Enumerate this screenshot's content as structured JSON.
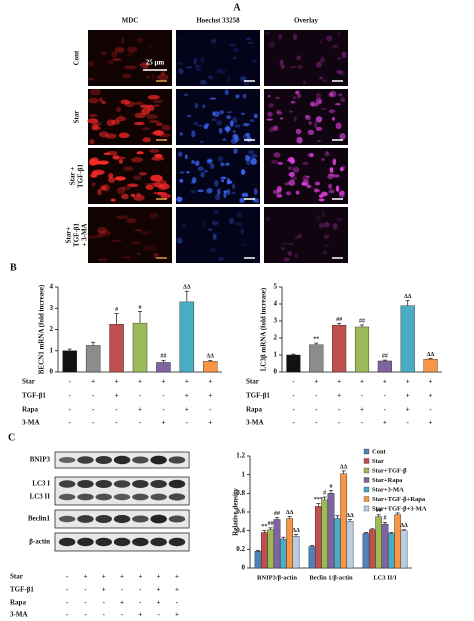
{
  "panel_a": {
    "label": "A",
    "columns": [
      "MDC",
      "Hoechst 33258",
      "Overlay"
    ],
    "rows": [
      [
        "Cont"
      ],
      [
        "Star"
      ],
      [
        "Star +",
        "TGF-β1"
      ],
      [
        "Star+",
        "TGF-β1",
        "+ 3-MA"
      ]
    ],
    "scale_bar": "25 μm"
  },
  "panel_b": {
    "label": "B"
  },
  "panel_c": {
    "label": "C",
    "blot_labels": [
      "BNIP3",
      "LC3 I",
      "LC3 II",
      "Beclin1",
      "β-actin"
    ]
  },
  "treatments": {
    "rows": [
      {
        "label": "Star",
        "signs": [
          "-",
          "+",
          "+",
          "+",
          "+",
          "+",
          "+"
        ]
      },
      {
        "label": "TGF-β1",
        "signs": [
          "-",
          "-",
          "+",
          "-",
          "-",
          "+",
          "+"
        ]
      },
      {
        "label": "Rapa",
        "signs": [
          "-",
          "-",
          "-",
          "+",
          "-",
          "+",
          "-"
        ]
      },
      {
        "label": "3-MA",
        "signs": [
          "-",
          "-",
          "-",
          "-",
          "+",
          "-",
          "+"
        ]
      }
    ]
  },
  "chart_data": [
    {
      "type": "bar",
      "y_label": "BECN1 mRNA (fold increase)",
      "values": [
        1.0,
        1.25,
        2.25,
        2.3,
        0.45,
        3.3,
        0.5
      ],
      "errors": [
        0.08,
        0.15,
        0.5,
        0.55,
        0.1,
        0.5,
        0.05
      ],
      "annotations": [
        null,
        null,
        "#",
        "#",
        "##",
        "ΔΔ",
        "ΔΔ"
      ],
      "colors": [
        "#111111",
        "#8c8c8c",
        "#c0504d",
        "#9bbb59",
        "#8064a2",
        "#4bacc6",
        "#f79646"
      ],
      "ylim": [
        0,
        4
      ],
      "yticks": [
        0,
        1,
        2,
        3,
        4
      ]
    },
    {
      "type": "bar",
      "y_label": "LC3β mRNA (fold increase)",
      "values": [
        1.0,
        1.6,
        2.75,
        2.65,
        0.65,
        3.9,
        0.75
      ],
      "errors": [
        0.05,
        0.1,
        0.1,
        0.12,
        0.05,
        0.3,
        0.05
      ],
      "annotations": [
        null,
        "**",
        "##",
        "##",
        "##",
        "ΔΔ",
        "ΔΔ"
      ],
      "colors": [
        "#111111",
        "#8c8c8c",
        "#c0504d",
        "#9bbb59",
        "#8064a2",
        "#4bacc6",
        "#f79646"
      ],
      "ylim": [
        0,
        5
      ],
      "yticks": [
        0,
        1,
        2,
        3,
        4,
        5
      ]
    },
    {
      "type": "grouped_bar",
      "y_label": "Relative density",
      "categories": [
        "BNIP3/β-actin",
        "Beclin 1/β-actin",
        "LC3 II/I"
      ],
      "series": [
        {
          "name": "Cont",
          "color": "#4f81bd",
          "values": [
            0.18,
            0.23,
            0.37
          ],
          "errors": [
            0.01,
            0.01,
            0.01
          ],
          "annotations": [
            null,
            null,
            null
          ]
        },
        {
          "name": "Star",
          "color": "#c0504d",
          "values": [
            0.38,
            0.66,
            0.41
          ],
          "errors": [
            0.02,
            0.03,
            0.01
          ],
          "annotations": [
            "**",
            "***",
            null
          ]
        },
        {
          "name": "Star+TGF-β",
          "color": "#9bbb59",
          "values": [
            0.41,
            0.73,
            0.55
          ],
          "errors": [
            0.02,
            0.03,
            0.02
          ],
          "annotations": [
            "##",
            "#",
            "##"
          ]
        },
        {
          "name": "Star+Rapa",
          "color": "#8064a2",
          "values": [
            0.52,
            0.8,
            0.47
          ],
          "errors": [
            0.02,
            0.03,
            0.02
          ],
          "annotations": [
            "##",
            "#",
            "#"
          ]
        },
        {
          "name": "Star+3-MA",
          "color": "#4bacc6",
          "values": [
            0.31,
            0.53,
            0.37
          ],
          "errors": [
            0.02,
            0.03,
            0.01
          ],
          "annotations": [
            null,
            null,
            null
          ]
        },
        {
          "name": "Star+TGF-β+Rapa",
          "color": "#f79646",
          "values": [
            0.53,
            1.01,
            0.57
          ],
          "errors": [
            0.02,
            0.03,
            0.02
          ],
          "annotations": [
            "ΔΔ",
            "ΔΔ",
            null
          ]
        },
        {
          "name": "Star+TGF-β+3-MA",
          "color": "#b9cde5",
          "values": [
            0.34,
            0.5,
            0.4
          ],
          "errors": [
            0.02,
            0.02,
            0.01
          ],
          "annotations": [
            "ΔΔ",
            "ΔΔ",
            "ΔΔ"
          ]
        }
      ],
      "ylim": [
        0,
        1.2
      ],
      "yticks": [
        0,
        0.2,
        0.4,
        0.6,
        0.8,
        1,
        1.2
      ]
    }
  ]
}
